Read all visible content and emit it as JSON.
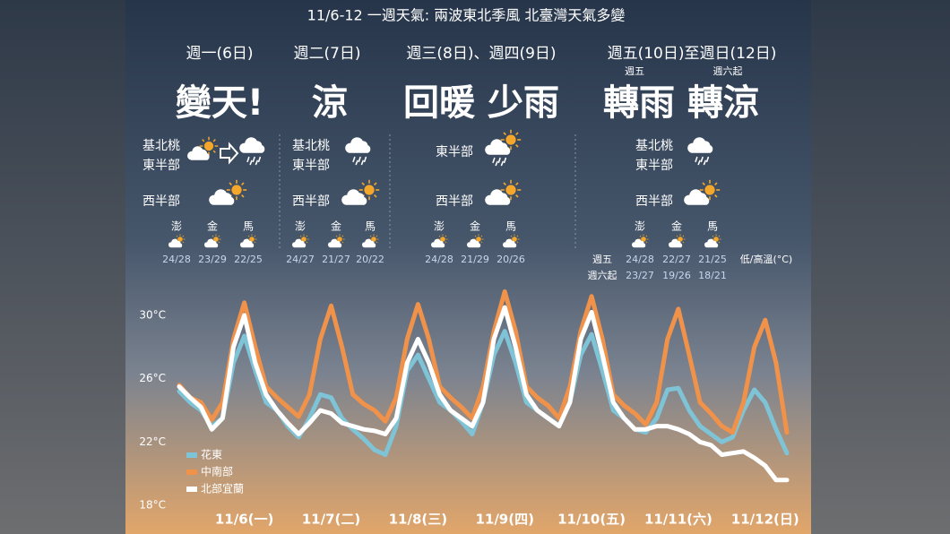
{
  "title": "11/6-12 一週天氣: 兩波東北季風 北臺灣天氣多變",
  "columns": [
    {
      "day": "週一(6日)",
      "headline": "變天!",
      "north_labels": [
        "基北桃",
        "東半部"
      ],
      "west_label": "西半部",
      "islands": [
        "澎",
        "金",
        "馬"
      ],
      "island_temps": [
        [
          "24/28",
          "23/29",
          "22/25"
        ]
      ]
    },
    {
      "day": "週二(7日)",
      "headline": "涼",
      "north_labels": [
        "基北桃",
        "東半部"
      ],
      "west_label": "西半部",
      "islands": [
        "澎",
        "金",
        "馬"
      ],
      "island_temps": [
        [
          "24/27",
          "21/27",
          "20/22"
        ]
      ]
    },
    {
      "day": "週三(8日)、週四(9日)",
      "headline": "回暖 少雨",
      "north_labels": [
        "東半部"
      ],
      "west_label": "西半部",
      "islands": [
        "澎",
        "金",
        "馬"
      ],
      "island_temps": [
        [
          "24/28",
          "21/29",
          "20/26"
        ]
      ]
    },
    {
      "day": "週五(10日)至週日(12日)",
      "headline": "轉雨 轉涼",
      "headline_notes": [
        "週五",
        "週六起"
      ],
      "north_labels": [
        "基北桃",
        "東半部"
      ],
      "west_label": "西半部",
      "islands": [
        "澎",
        "金",
        "馬"
      ],
      "row_labels": [
        "週五",
        "週六起"
      ],
      "island_temps": [
        [
          "24/28",
          "22/27",
          "21/25"
        ],
        [
          "23/27",
          "19/26",
          "18/21"
        ]
      ],
      "unit_note": "低/高溫(°C)"
    }
  ],
  "chart_data": {
    "type": "line",
    "x": [
      -6,
      -3,
      0,
      3,
      6,
      9,
      12,
      15,
      18,
      21,
      24,
      27,
      30,
      33,
      36,
      39,
      42,
      45,
      48,
      51,
      54,
      57,
      60,
      63,
      66,
      69,
      72,
      75,
      78,
      81,
      84,
      87,
      90,
      93,
      96,
      99,
      102,
      105,
      108,
      111,
      114,
      117,
      120,
      123,
      126,
      129,
      132,
      135,
      138,
      141,
      144,
      147,
      150,
      153,
      156,
      159,
      162
    ],
    "xlim": [
      -6,
      162
    ],
    "xticks": [
      {
        "value": 12,
        "label": "11/6(一)"
      },
      {
        "value": 36,
        "label": "11/7(二)"
      },
      {
        "value": 60,
        "label": "11/8(三)"
      },
      {
        "value": 84,
        "label": "11/9(四)"
      },
      {
        "value": 108,
        "label": "11/10(五)"
      },
      {
        "value": 132,
        "label": "11/11(六)"
      },
      {
        "value": 156,
        "label": "11/12(日)"
      }
    ],
    "ylim": [
      18,
      32
    ],
    "yticks": [
      {
        "value": 18,
        "label": "18°C"
      },
      {
        "value": 22,
        "label": "22°C"
      },
      {
        "value": 26,
        "label": "26°C"
      },
      {
        "value": 30,
        "label": "30°C"
      }
    ],
    "legend_position": "lower left",
    "series": [
      {
        "name": "花東",
        "color": "#7ec3d6",
        "values": [
          25.2,
          24.5,
          24.0,
          23.0,
          23.5,
          27.0,
          28.7,
          26.5,
          24.5,
          24.0,
          23.0,
          22.3,
          23.5,
          25.0,
          24.8,
          23.5,
          22.8,
          22.2,
          21.5,
          21.2,
          23.0,
          26.5,
          27.5,
          26.0,
          24.5,
          24.0,
          23.3,
          22.5,
          24.5,
          27.5,
          29.0,
          27.0,
          24.5,
          24.0,
          23.5,
          23.0,
          24.5,
          27.5,
          28.8,
          26.5,
          24.0,
          23.5,
          22.8,
          22.6,
          23.5,
          25.3,
          25.4,
          24.0,
          23.0,
          22.5,
          22.0,
          22.3,
          24.0,
          25.3,
          24.5,
          22.8,
          21.3
        ]
      },
      {
        "name": "中南部",
        "color": "#f0924a",
        "values": [
          25.6,
          24.8,
          24.5,
          23.4,
          24.5,
          28.5,
          30.8,
          28.0,
          25.5,
          24.8,
          24.2,
          23.6,
          25.0,
          28.5,
          30.6,
          28.0,
          25.0,
          24.4,
          24.0,
          23.3,
          24.8,
          28.5,
          30.7,
          28.5,
          25.5,
          24.8,
          24.2,
          23.5,
          25.5,
          29.0,
          31.5,
          29.0,
          25.5,
          24.8,
          24.3,
          23.5,
          25.5,
          29.0,
          31.2,
          28.5,
          25.0,
          24.3,
          23.8,
          23.1,
          24.5,
          28.5,
          30.4,
          27.5,
          24.5,
          23.8,
          23.0,
          22.6,
          24.5,
          28.0,
          29.7,
          27.0,
          22.6
        ]
      },
      {
        "name": "北部宜蘭",
        "color": "#ffffff",
        "values": [
          25.5,
          24.8,
          24.2,
          22.8,
          23.5,
          28.0,
          30.0,
          27.0,
          25.0,
          24.0,
          23.2,
          22.5,
          23.2,
          24.0,
          23.8,
          23.2,
          23.0,
          22.8,
          22.7,
          22.5,
          23.5,
          27.0,
          28.5,
          27.0,
          25.0,
          24.0,
          23.5,
          23.0,
          24.5,
          28.5,
          30.5,
          28.0,
          25.0,
          24.0,
          23.5,
          23.0,
          24.5,
          28.5,
          30.2,
          27.5,
          24.5,
          23.5,
          22.8,
          22.8,
          23.0,
          23.0,
          22.8,
          22.5,
          22.0,
          21.8,
          21.2,
          21.3,
          21.4,
          21.0,
          20.5,
          19.6,
          19.6
        ]
      }
    ]
  }
}
